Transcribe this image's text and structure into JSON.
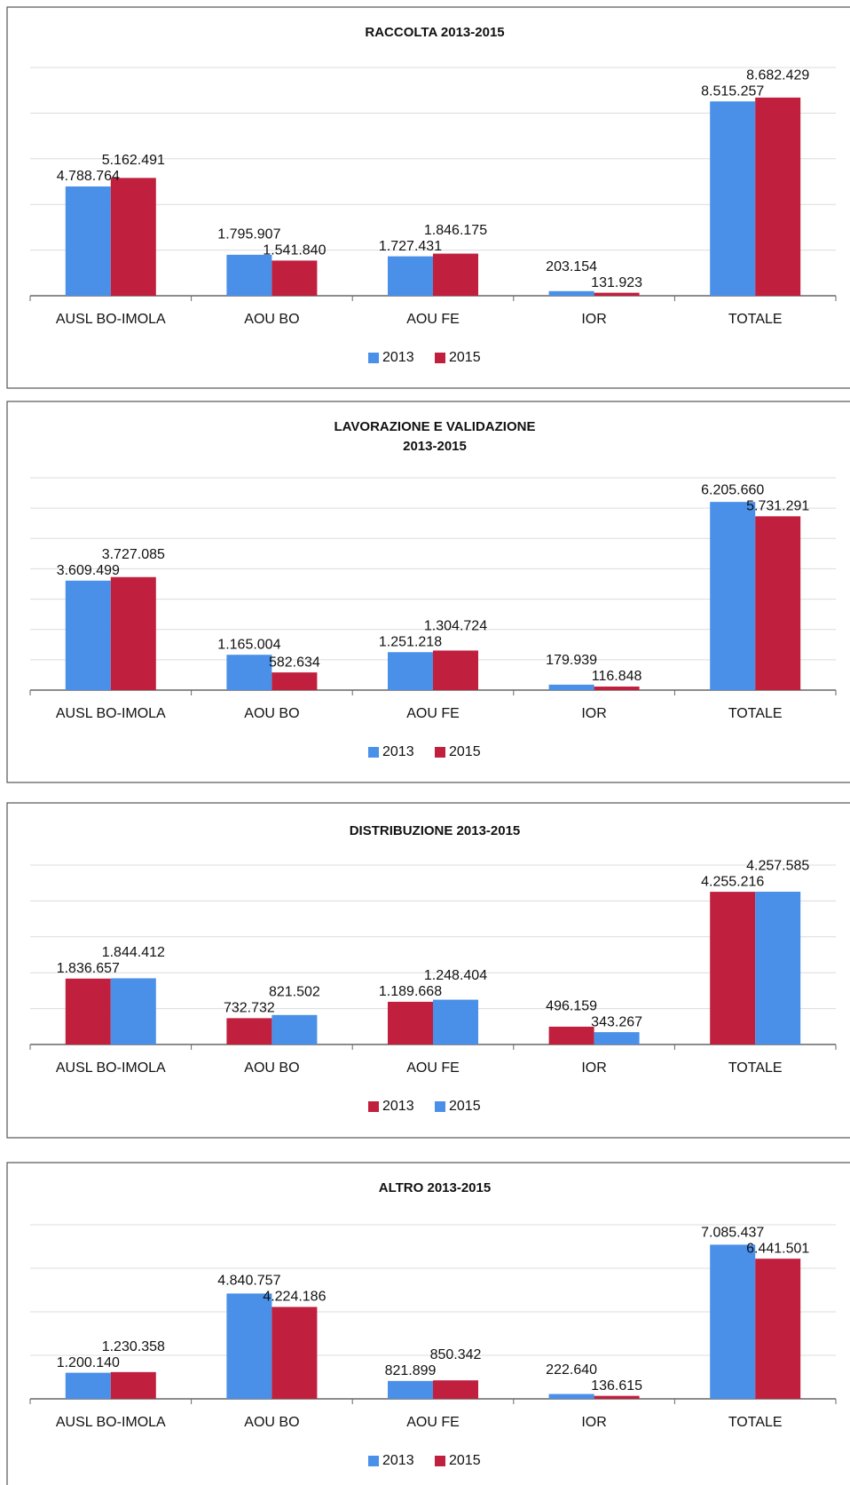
{
  "chart_data": [
    {
      "type": "bar",
      "title": [
        "RACCOLTA 2013-2015"
      ],
      "categories": [
        "AUSL BO-IMOLA",
        "AOU BO",
        "AOU FE",
        "IOR",
        "TOTALE"
      ],
      "series": [
        {
          "name": "2013",
          "color": "#4a90e8",
          "values": [
            4788764,
            1795907,
            1727431,
            203154,
            8515257
          ],
          "value_labels": [
            "4.788.764",
            "1.795.907",
            "1.727.431",
            "203.154",
            "8.515.257"
          ]
        },
        {
          "name": "2015",
          "color": "#c0203e",
          "values": [
            5162491,
            1541840,
            1846175,
            131923,
            8682429
          ],
          "value_labels": [
            "5.162.491",
            "1.541.840",
            "1.846.175",
            "131.923",
            "8.682.429"
          ]
        }
      ],
      "ylim": [
        0,
        10000000
      ],
      "yticks": [
        0,
        2000000,
        4000000,
        6000000,
        8000000,
        10000000
      ],
      "grid": true,
      "legend": "bottom"
    },
    {
      "type": "bar",
      "title": [
        "LAVORAZIONE E VALIDAZIONE",
        "2013-2015"
      ],
      "categories": [
        "AUSL BO-IMOLA",
        "AOU BO",
        "AOU FE",
        "IOR",
        "TOTALE"
      ],
      "series": [
        {
          "name": "2013",
          "color": "#4a90e8",
          "values": [
            3609499,
            1165004,
            1251218,
            179939,
            6205660
          ],
          "value_labels": [
            "3.609.499",
            "1.165.004",
            "1.251.218",
            "179.939",
            "6.205.660"
          ]
        },
        {
          "name": "2015",
          "color": "#c0203e",
          "values": [
            3727085,
            582634,
            1304724,
            116848,
            5731291
          ],
          "value_labels": [
            "3.727.085",
            "582.634",
            "1.304.724",
            "116.848",
            "5.731.291"
          ]
        }
      ],
      "ylim": [
        0,
        7000000
      ],
      "yticks": [
        0,
        1000000,
        2000000,
        3000000,
        4000000,
        5000000,
        6000000,
        7000000
      ],
      "grid": true,
      "legend": "bottom"
    },
    {
      "type": "bar",
      "title": [
        "DISTRIBUZIONE 2013-2015"
      ],
      "categories": [
        "AUSL BO-IMOLA",
        "AOU BO",
        "AOU FE",
        "IOR",
        "TOTALE"
      ],
      "series": [
        {
          "name": "2013",
          "color": "#c0203e",
          "values": [
            1836657,
            732732,
            1189668,
            496159,
            4255216
          ],
          "value_labels": [
            "1.836.657",
            "732.732",
            "1.189.668",
            "496.159",
            "4.255.216"
          ]
        },
        {
          "name": "2015",
          "color": "#4a90e8",
          "values": [
            1844412,
            821502,
            1248404,
            343267,
            4257585
          ],
          "value_labels": [
            "1.844.412",
            "821.502",
            "1.248.404",
            "343.267",
            "4.257.585"
          ]
        }
      ],
      "ylim": [
        0,
        5000000
      ],
      "yticks": [
        0,
        1000000,
        2000000,
        3000000,
        4000000,
        5000000
      ],
      "grid": true,
      "legend": "bottom"
    },
    {
      "type": "bar",
      "title": [
        "ALTRO 2013-2015"
      ],
      "categories": [
        "AUSL BO-IMOLA",
        "AOU BO",
        "AOU FE",
        "IOR",
        "TOTALE"
      ],
      "series": [
        {
          "name": "2013",
          "color": "#4a90e8",
          "values": [
            1200140,
            4840757,
            821899,
            222640,
            7085437
          ],
          "value_labels": [
            "1.200.140",
            "4.840.757",
            "821.899",
            "222.640",
            "7.085.437"
          ]
        },
        {
          "name": "2015",
          "color": "#c0203e",
          "values": [
            1230358,
            4224186,
            850342,
            136615,
            6441501
          ],
          "value_labels": [
            "1.230.358",
            "4.224.186",
            "850.342",
            "136.615",
            "6.441.501"
          ]
        }
      ],
      "ylim": [
        0,
        8000000
      ],
      "yticks": [
        0,
        2000000,
        4000000,
        6000000,
        8000000
      ],
      "grid": true,
      "legend": "bottom"
    }
  ]
}
